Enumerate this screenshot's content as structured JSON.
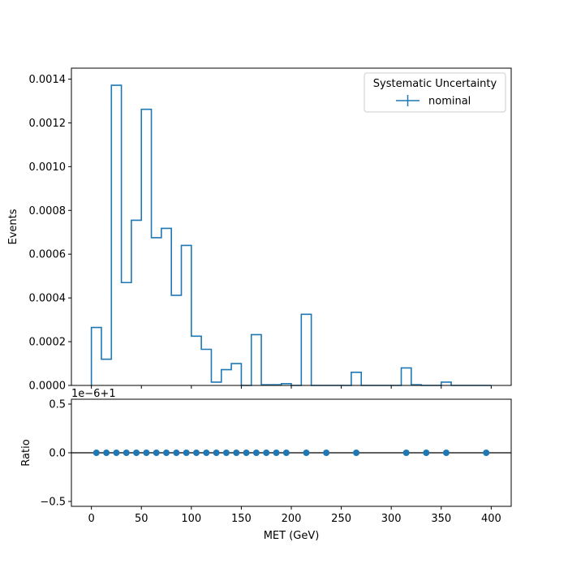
{
  "colors": {
    "series": "#1f77b4",
    "axis": "#000000",
    "legend_border": "#cccccc",
    "background": "#ffffff"
  },
  "chart_data": [
    {
      "type": "line",
      "drawstyle": "step-histogram",
      "xlabel": "",
      "ylabel": "Events",
      "xlim": [
        -20,
        420
      ],
      "ylim": [
        0,
        0.00145
      ],
      "x_ticks": [
        "0",
        "50",
        "100",
        "150",
        "200",
        "250",
        "300",
        "350",
        "400"
      ],
      "x_tick_values": [
        0,
        50,
        100,
        150,
        200,
        250,
        300,
        350,
        400
      ],
      "y_ticks": [
        "0.0000",
        "0.0002",
        "0.0004",
        "0.0006",
        "0.0008",
        "0.0010",
        "0.0012",
        "0.0014"
      ],
      "y_tick_values": [
        0,
        0.0002,
        0.0004,
        0.0006,
        0.0008,
        0.001,
        0.0012,
        0.0014
      ],
      "legend": {
        "title": "Systematic Uncertainty",
        "position": "top-right",
        "entries": [
          "nominal"
        ]
      },
      "bin_edges": [
        0,
        10,
        20,
        30,
        40,
        50,
        60,
        70,
        80,
        90,
        100,
        110,
        120,
        130,
        140,
        150,
        160,
        170,
        180,
        190,
        200,
        210,
        220,
        230,
        240,
        250,
        260,
        270,
        280,
        290,
        300,
        310,
        320,
        330,
        340,
        350,
        360,
        370,
        380,
        390,
        400
      ],
      "series": [
        {
          "name": "nominal",
          "values": [
            0.000265,
            0.00012,
            0.001372,
            0.00047,
            0.000755,
            0.001262,
            0.000675,
            0.000718,
            0.000412,
            0.00064,
            0.000225,
            0.000165,
            1.5e-05,
            7.2e-05,
            0.0001,
            0.0,
            0.000232,
            3e-06,
            3e-06,
            8e-06,
            0.0,
            0.000325,
            0.0,
            0.0,
            0.0,
            0.0,
            6e-05,
            0.0,
            0.0,
            0.0,
            0.0,
            8e-05,
            3e-06,
            0.0,
            0.0,
            1.5e-05,
            0.0,
            0.0,
            0.0,
            0.0
          ]
        }
      ]
    },
    {
      "type": "scatter",
      "xlabel": "MET (GeV)",
      "ylabel": "Ratio",
      "offset_text": "1e−6+1",
      "xlim": [
        -20,
        420
      ],
      "ylim": [
        -0.55,
        0.55
      ],
      "x_ticks": [
        "0",
        "50",
        "100",
        "150",
        "200",
        "250",
        "300",
        "350",
        "400"
      ],
      "x_tick_values": [
        0,
        50,
        100,
        150,
        200,
        250,
        300,
        350,
        400
      ],
      "y_ticks": [
        "−0.5",
        "0.0",
        "0.5"
      ],
      "y_tick_values": [
        -0.5,
        0,
        0.5
      ],
      "reference_line_y": 0,
      "series": [
        {
          "x": [
            5,
            15,
            25,
            35,
            45,
            55,
            65,
            75,
            85,
            95,
            105,
            115,
            125,
            135,
            145,
            155,
            165,
            175,
            185,
            195,
            215,
            235,
            265,
            315,
            335,
            355,
            395
          ],
          "y": [
            0,
            0,
            0,
            0,
            0,
            0,
            0,
            0,
            0,
            0,
            0,
            0,
            0,
            0,
            0,
            0,
            0,
            0,
            0,
            0,
            0,
            0,
            0,
            0,
            0,
            0,
            0
          ]
        }
      ]
    }
  ]
}
